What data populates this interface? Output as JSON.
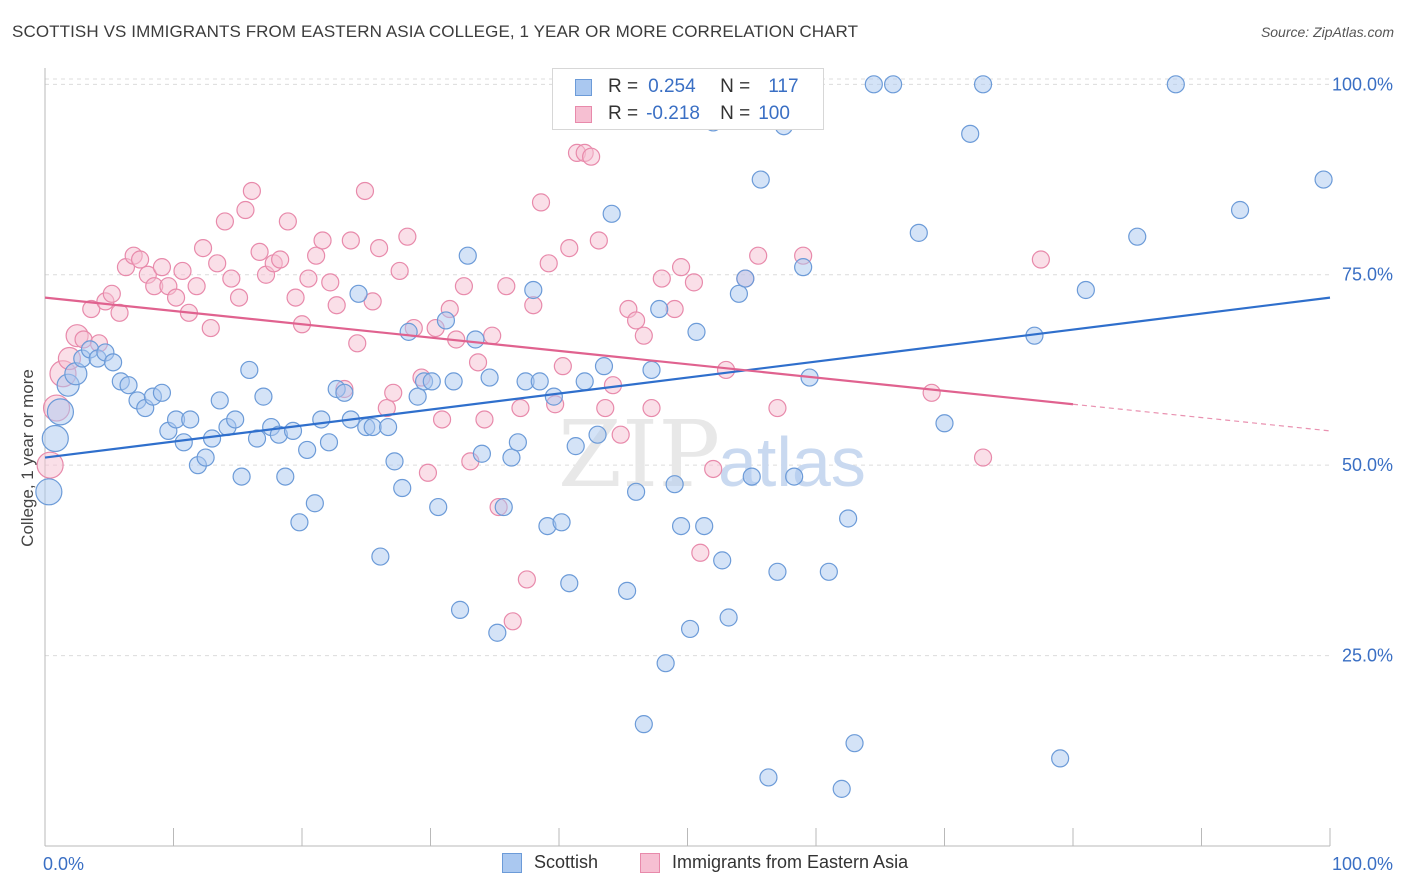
{
  "title": "SCOTTISH VS IMMIGRANTS FROM EASTERN ASIA COLLEGE, 1 YEAR OR MORE CORRELATION CHART",
  "source": "Source: ZipAtlas.com",
  "watermark": {
    "zip": "ZIP",
    "atlas": "atlas"
  },
  "colors": {
    "blue_fill": "#aac8f0",
    "blue_stroke": "#6c9bd8",
    "blue_line": "#2f6fcc",
    "pink_fill": "#f6bfd2",
    "pink_stroke": "#e88aab",
    "pink_line": "#e0628f",
    "axis_label": "#3a6fc4",
    "grid": "#dcdcdc"
  },
  "legend_top": [
    {
      "r_label": "R =",
      "r_value": "0.254",
      "n_label": "N =",
      "n_value": "117"
    },
    {
      "r_label": "R =",
      "r_value": "-0.218",
      "n_label": "N =",
      "n_value": "100"
    }
  ],
  "chart_data": {
    "type": "scatter",
    "title": "SCOTTISH VS IMMIGRANTS FROM EASTERN ASIA COLLEGE, 1 YEAR OR MORE CORRELATION CHART",
    "xlabel": "",
    "ylabel": "College, 1 year or more",
    "xlim": [
      0,
      100
    ],
    "ylim": [
      0,
      102
    ],
    "x_ticks": [
      "0.0%",
      "100.0%"
    ],
    "y_ticks": [
      {
        "value": 25,
        "label": "25.0%"
      },
      {
        "value": 50,
        "label": "50.0%"
      },
      {
        "value": 75,
        "label": "75.0%"
      },
      {
        "value": 100,
        "label": "100.0%"
      }
    ],
    "grid": true,
    "legend": "bottom-center",
    "series": [
      {
        "name": "Scottish",
        "color": "#aac8f0",
        "trend": {
          "x": [
            0,
            100
          ],
          "y": [
            51.0,
            72.0
          ],
          "dashed_from": null
        },
        "points": [
          [
            0.3,
            46.5
          ],
          [
            0.8,
            53.5
          ],
          [
            1.2,
            57.0
          ],
          [
            1.8,
            60.5
          ],
          [
            2.4,
            62.0
          ],
          [
            2.9,
            64.0
          ],
          [
            3.5,
            65.2
          ],
          [
            4.1,
            64.0
          ],
          [
            4.7,
            64.8
          ],
          [
            5.3,
            63.5
          ],
          [
            5.9,
            61.0
          ],
          [
            6.5,
            60.5
          ],
          [
            7.2,
            58.5
          ],
          [
            7.8,
            57.5
          ],
          [
            8.4,
            59.0
          ],
          [
            9.1,
            59.5
          ],
          [
            9.6,
            54.5
          ],
          [
            10.2,
            56.0
          ],
          [
            10.8,
            53.0
          ],
          [
            11.3,
            56.0
          ],
          [
            11.9,
            50.0
          ],
          [
            12.5,
            51.0
          ],
          [
            13.0,
            53.5
          ],
          [
            13.6,
            58.5
          ],
          [
            14.2,
            55.0
          ],
          [
            14.8,
            56.0
          ],
          [
            15.3,
            48.5
          ],
          [
            15.9,
            62.5
          ],
          [
            16.5,
            53.5
          ],
          [
            17.0,
            59.0
          ],
          [
            17.6,
            55.0
          ],
          [
            18.2,
            54.0
          ],
          [
            18.7,
            48.5
          ],
          [
            19.3,
            54.5
          ],
          [
            19.8,
            42.5
          ],
          [
            20.4,
            52.0
          ],
          [
            21.0,
            45.0
          ],
          [
            21.5,
            56.0
          ],
          [
            22.1,
            53.0
          ],
          [
            22.7,
            60.0
          ],
          [
            23.3,
            59.5
          ],
          [
            23.8,
            56.0
          ],
          [
            24.4,
            72.5
          ],
          [
            25.0,
            55.0
          ],
          [
            25.5,
            55.0
          ],
          [
            26.1,
            38.0
          ],
          [
            26.7,
            55.0
          ],
          [
            27.2,
            50.5
          ],
          [
            27.8,
            47.0
          ],
          [
            28.3,
            67.5
          ],
          [
            29.0,
            59.0
          ],
          [
            29.5,
            61.0
          ],
          [
            30.1,
            61.0
          ],
          [
            30.6,
            44.5
          ],
          [
            31.2,
            69.0
          ],
          [
            31.8,
            61.0
          ],
          [
            32.3,
            31.0
          ],
          [
            32.9,
            77.5
          ],
          [
            33.5,
            66.5
          ],
          [
            34.0,
            51.5
          ],
          [
            34.6,
            61.5
          ],
          [
            35.2,
            28.0
          ],
          [
            35.7,
            44.5
          ],
          [
            36.3,
            51.0
          ],
          [
            36.8,
            53.0
          ],
          [
            37.4,
            61.0
          ],
          [
            38.0,
            73.0
          ],
          [
            38.5,
            61.0
          ],
          [
            39.1,
            42.0
          ],
          [
            39.6,
            59.0
          ],
          [
            40.2,
            42.5
          ],
          [
            40.8,
            34.5
          ],
          [
            41.3,
            52.5
          ],
          [
            42.0,
            61.0
          ],
          [
            43.0,
            54.0
          ],
          [
            43.5,
            63.0
          ],
          [
            44.1,
            83.0
          ],
          [
            44.8,
            96.0
          ],
          [
            45.3,
            33.5
          ],
          [
            46.0,
            46.5
          ],
          [
            46.6,
            16.0
          ],
          [
            47.2,
            62.5
          ],
          [
            47.8,
            70.5
          ],
          [
            48.3,
            24.0
          ],
          [
            49.0,
            47.5
          ],
          [
            49.5,
            42.0
          ],
          [
            50.2,
            28.5
          ],
          [
            50.7,
            67.5
          ],
          [
            51.3,
            42.0
          ],
          [
            52.0,
            95.0
          ],
          [
            52.7,
            37.5
          ],
          [
            53.2,
            30.0
          ],
          [
            54.0,
            72.5
          ],
          [
            54.5,
            74.5
          ],
          [
            55.0,
            48.5
          ],
          [
            55.7,
            87.5
          ],
          [
            56.3,
            9.0
          ],
          [
            57.0,
            36.0
          ],
          [
            57.5,
            94.5
          ],
          [
            58.3,
            48.5
          ],
          [
            59.0,
            76.0
          ],
          [
            59.5,
            61.5
          ],
          [
            61.0,
            36.0
          ],
          [
            62.0,
            7.5
          ],
          [
            62.5,
            43.0
          ],
          [
            63.0,
            13.5
          ],
          [
            64.5,
            100.0
          ],
          [
            66.0,
            100.0
          ],
          [
            68.0,
            80.5
          ],
          [
            70.0,
            55.5
          ],
          [
            72.0,
            93.5
          ],
          [
            73.0,
            100.0
          ],
          [
            77.0,
            67.0
          ],
          [
            79.0,
            11.5
          ],
          [
            81.0,
            73.0
          ],
          [
            85.0,
            80.0
          ],
          [
            88.0,
            100.0
          ],
          [
            93.0,
            83.5
          ],
          [
            99.5,
            87.5
          ]
        ]
      },
      {
        "name": "Immigrants from Eastern Asia",
        "color": "#f6bfd2",
        "trend": {
          "x": [
            0,
            80,
            100
          ],
          "y": [
            72.0,
            58.0,
            54.5
          ],
          "dashed_from": 80
        },
        "points": [
          [
            0.4,
            50.0
          ],
          [
            0.9,
            57.5
          ],
          [
            1.4,
            62.0
          ],
          [
            1.9,
            64.0
          ],
          [
            2.5,
            67.0
          ],
          [
            3.0,
            66.5
          ],
          [
            3.6,
            70.5
          ],
          [
            4.2,
            66.0
          ],
          [
            4.7,
            71.5
          ],
          [
            5.2,
            72.5
          ],
          [
            5.8,
            70.0
          ],
          [
            6.3,
            76.0
          ],
          [
            6.9,
            77.5
          ],
          [
            7.4,
            77.0
          ],
          [
            8.0,
            75.0
          ],
          [
            8.5,
            73.5
          ],
          [
            9.1,
            76.0
          ],
          [
            9.6,
            73.5
          ],
          [
            10.2,
            72.0
          ],
          [
            10.7,
            75.5
          ],
          [
            11.2,
            70.0
          ],
          [
            11.8,
            73.5
          ],
          [
            12.3,
            78.5
          ],
          [
            12.9,
            68.0
          ],
          [
            13.4,
            76.5
          ],
          [
            14.0,
            82.0
          ],
          [
            14.5,
            74.5
          ],
          [
            15.1,
            72.0
          ],
          [
            15.6,
            83.5
          ],
          [
            16.1,
            86.0
          ],
          [
            16.7,
            78.0
          ],
          [
            17.2,
            75.0
          ],
          [
            17.8,
            76.5
          ],
          [
            18.3,
            77.0
          ],
          [
            18.9,
            82.0
          ],
          [
            19.5,
            72.0
          ],
          [
            20.0,
            68.5
          ],
          [
            20.5,
            74.5
          ],
          [
            21.1,
            77.5
          ],
          [
            21.6,
            79.5
          ],
          [
            22.2,
            74.0
          ],
          [
            22.7,
            71.0
          ],
          [
            23.3,
            60.0
          ],
          [
            23.8,
            79.5
          ],
          [
            24.3,
            66.0
          ],
          [
            24.9,
            86.0
          ],
          [
            25.5,
            71.5
          ],
          [
            26.0,
            78.5
          ],
          [
            26.6,
            57.5
          ],
          [
            27.1,
            59.5
          ],
          [
            27.6,
            75.5
          ],
          [
            28.2,
            80.0
          ],
          [
            28.7,
            68.0
          ],
          [
            29.3,
            61.5
          ],
          [
            29.8,
            49.0
          ],
          [
            30.4,
            68.0
          ],
          [
            30.9,
            56.0
          ],
          [
            31.5,
            70.5
          ],
          [
            32.0,
            66.5
          ],
          [
            32.6,
            73.5
          ],
          [
            33.1,
            50.5
          ],
          [
            33.7,
            63.5
          ],
          [
            34.2,
            56.0
          ],
          [
            34.8,
            67.0
          ],
          [
            35.3,
            44.5
          ],
          [
            35.9,
            73.5
          ],
          [
            36.4,
            29.5
          ],
          [
            37.0,
            57.5
          ],
          [
            37.5,
            35.0
          ],
          [
            38.0,
            71.0
          ],
          [
            38.6,
            84.5
          ],
          [
            39.2,
            76.5
          ],
          [
            39.7,
            58.0
          ],
          [
            40.3,
            63.0
          ],
          [
            40.8,
            78.5
          ],
          [
            41.4,
            91.0
          ],
          [
            42.0,
            91.0
          ],
          [
            42.5,
            90.5
          ],
          [
            43.1,
            79.5
          ],
          [
            43.6,
            57.5
          ],
          [
            44.2,
            60.5
          ],
          [
            44.8,
            54.0
          ],
          [
            45.4,
            70.5
          ],
          [
            46.0,
            69.0
          ],
          [
            46.6,
            67.0
          ],
          [
            47.2,
            57.5
          ],
          [
            48.0,
            74.5
          ],
          [
            49.0,
            70.5
          ],
          [
            49.5,
            76.0
          ],
          [
            50.5,
            74.0
          ],
          [
            51.0,
            38.5
          ],
          [
            52.0,
            49.5
          ],
          [
            53.0,
            62.5
          ],
          [
            54.5,
            74.5
          ],
          [
            55.5,
            77.5
          ],
          [
            57.0,
            57.5
          ],
          [
            59.0,
            77.5
          ],
          [
            69.0,
            59.5
          ],
          [
            73.0,
            51.0
          ],
          [
            77.5,
            77.0
          ]
        ]
      }
    ]
  },
  "bottom_legend": [
    {
      "label": "Scottish"
    },
    {
      "label": "Immigrants from Eastern Asia"
    }
  ]
}
